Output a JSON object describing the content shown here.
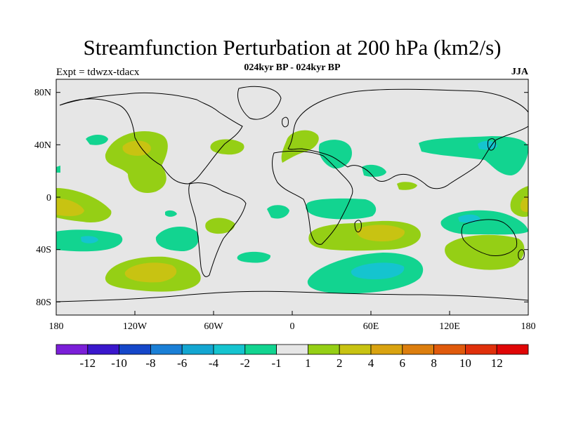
{
  "header": {
    "title": "Streamfunction Perturbation at 200 hPa (km2/s)",
    "subtitle": "024kyr BP - 024kyr BP",
    "left_label": "Expt = tdwzx-tdacx",
    "right_label": "JJA"
  },
  "map": {
    "background_color": "#e6e6e6",
    "lat_ticks": [
      "80N",
      "40N",
      "0",
      "40S",
      "80S"
    ],
    "lon_ticks": [
      "180",
      "120W",
      "60W",
      "0",
      "60E",
      "120E",
      "180"
    ]
  },
  "colorbar": {
    "colors": [
      "#7b1fd8",
      "#3a17cc",
      "#1547c9",
      "#1a7fd6",
      "#13a6d1",
      "#15c4cf",
      "#12d490",
      "#e6e6e6",
      "#95cf15",
      "#c8c312",
      "#d9a310",
      "#dc7e0e",
      "#e05a0c",
      "#e0300b",
      "#e00606"
    ],
    "labels": [
      "-12",
      "-10",
      "-8",
      "-6",
      "-4",
      "-2",
      "-1",
      "1",
      "2",
      "4",
      "6",
      "8",
      "10",
      "12"
    ]
  }
}
